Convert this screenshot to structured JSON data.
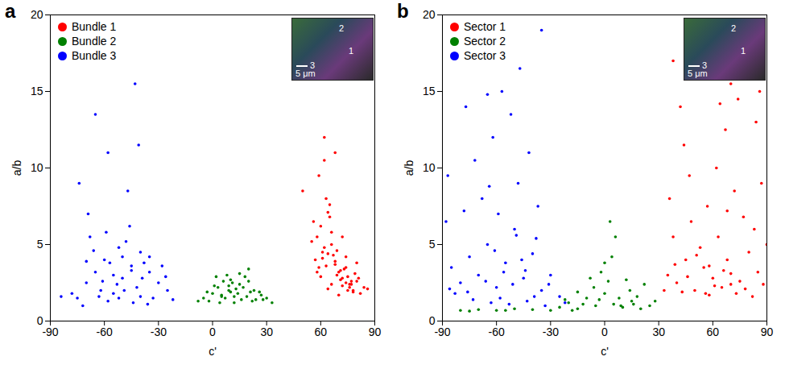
{
  "chart_data": [
    {
      "type": "scatter",
      "title": "a",
      "x_label": "c'",
      "y_label": "a/b",
      "xlim": [
        -90,
        90
      ],
      "xticks": [
        -90,
        -60,
        -30,
        0,
        30,
        60,
        90
      ],
      "ylim": [
        0,
        20
      ],
      "yticks": [
        0,
        5,
        10,
        15,
        20
      ],
      "grid": false,
      "legend": "top-left",
      "inset_labels": [
        "2",
        "1",
        "3"
      ],
      "scale_bar": "5 μm",
      "series": [
        {
          "name": "Bundle 1",
          "color": "#ff0000",
          "x": [
            58,
            60,
            62,
            64,
            66,
            68,
            70,
            72,
            74,
            76,
            78,
            80,
            82,
            59,
            61,
            63,
            65,
            67,
            69,
            71,
            73,
            75,
            77,
            79,
            57,
            60,
            63,
            66,
            69,
            72,
            75,
            78,
            81,
            84,
            56,
            59,
            62,
            65,
            68,
            71,
            74,
            77,
            80,
            55,
            62,
            68,
            74,
            64,
            70,
            76,
            61,
            66,
            72,
            58,
            64,
            86,
            50
          ],
          "values": [
            5.5,
            6.2,
            4.8,
            7.1,
            5.0,
            3.9,
            3.2,
            2.8,
            2.5,
            2.2,
            2.0,
            2.6,
            1.8,
            3.5,
            4.5,
            8.0,
            6.8,
            4.3,
            3.0,
            2.7,
            3.4,
            2.9,
            2.4,
            3.1,
            4.0,
            2.9,
            3.6,
            5.8,
            4.6,
            2.3,
            2.0,
            1.9,
            2.8,
            2.2,
            6.5,
            9.5,
            10.5,
            7.6,
            3.7,
            3.3,
            4.2,
            2.6,
            3.8,
            5.2,
            12.0,
            11.0,
            3.5,
            2.1,
            1.7,
            2.4,
            4.1,
            2.4,
            5.5,
            3.2,
            4.4,
            2.1,
            8.5
          ]
        },
        {
          "name": "Bundle 2",
          "color": "#008000",
          "x": [
            -5,
            0,
            3,
            6,
            9,
            12,
            15,
            18,
            21,
            24,
            27,
            30,
            -2,
            2,
            5,
            8,
            11,
            14,
            17,
            20,
            23,
            26,
            4,
            7,
            10,
            13,
            16,
            19,
            1,
            -8,
            28,
            10,
            12,
            15,
            20,
            33,
            9,
            5,
            22,
            -3
          ],
          "values": [
            1.5,
            1.8,
            2.2,
            2.6,
            2.0,
            1.6,
            2.4,
            2.9,
            1.9,
            1.4,
            1.7,
            1.5,
            1.3,
            2.9,
            1.7,
            3.0,
            2.5,
            1.8,
            2.2,
            3.4,
            2.0,
            1.9,
            1.2,
            1.5,
            1.9,
            2.1,
            1.4,
            1.6,
            2.3,
            1.3,
            1.4,
            2.7,
            1.2,
            3.1,
            2.6,
            1.2,
            2.3,
            1.6,
            1.3,
            1.9
          ]
        },
        {
          "name": "Bundle 3",
          "color": "#0000ff",
          "x": [
            -75,
            -70,
            -65,
            -60,
            -55,
            -50,
            -45,
            -40,
            -35,
            -30,
            -25,
            -22,
            -72,
            -68,
            -62,
            -58,
            -52,
            -48,
            -42,
            -38,
            -33,
            -28,
            -78,
            -66,
            -57,
            -46,
            -44,
            -36,
            -63,
            -53,
            -47,
            -41,
            -69,
            -74,
            -55,
            -49,
            -61,
            -39,
            -59,
            -43,
            -65,
            -50,
            -58,
            -45,
            -35,
            -26,
            -84,
            -52,
            -70,
            -40
          ],
          "values": [
            1.5,
            2.5,
            3.2,
            4.0,
            3.0,
            2.8,
            3.6,
            4.5,
            3.2,
            2.5,
            2.0,
            1.4,
            1.0,
            5.5,
            2.0,
            1.3,
            4.8,
            5.2,
            2.2,
            3.8,
            1.5,
            3.6,
            1.8,
            4.6,
            3.8,
            6.2,
            1.2,
            1.1,
            1.6,
            2.4,
            8.5,
            11.5,
            7.0,
            9.0,
            1.8,
            2.0,
            2.6,
            2.8,
            5.8,
            15.5,
            13.5,
            4.2,
            11.0,
            3.3,
            4.2,
            2.9,
            1.6,
            1.5,
            3.9,
            1.6
          ]
        }
      ]
    },
    {
      "type": "scatter",
      "title": "b",
      "x_label": "c'",
      "y_label": "a/b",
      "xlim": [
        -90,
        90
      ],
      "xticks": [
        -90,
        -60,
        -30,
        0,
        30,
        60,
        90
      ],
      "ylim": [
        0,
        20
      ],
      "yticks": [
        0,
        5,
        10,
        15,
        20
      ],
      "grid": false,
      "legend": "top-left",
      "inset_labels": [
        "2",
        "1",
        "3"
      ],
      "scale_bar": "5 μm",
      "series": [
        {
          "name": "Sector 1",
          "color": "#ff0000",
          "x": [
            35,
            40,
            45,
            50,
            55,
            60,
            65,
            70,
            75,
            80,
            85,
            88,
            38,
            43,
            48,
            53,
            58,
            63,
            68,
            73,
            78,
            83,
            36,
            47,
            57,
            62,
            67,
            72,
            77,
            87,
            42,
            38,
            64,
            74,
            84,
            33,
            46,
            56,
            66,
            82,
            58,
            70,
            90,
            44,
            51,
            70,
            61,
            86,
            39,
            68
          ],
          "values": [
            3.0,
            2.5,
            4.0,
            2.0,
            3.5,
            2.8,
            2.2,
            3.1,
            2.6,
            4.5,
            3.2,
            2.4,
            5.5,
            1.9,
            6.5,
            4.8,
            1.7,
            5.5,
            4.0,
            1.8,
            2.1,
            6.0,
            8.0,
            9.5,
            7.5,
            10.0,
            12.5,
            8.5,
            6.8,
            9.0,
            14.0,
            17.0,
            14.2,
            14.5,
            13.0,
            2.0,
            2.9,
            1.8,
            3.3,
            1.6,
            3.6,
            2.4,
            5.0,
            11.5,
            4.3,
            15.5,
            2.3,
            15.0,
            3.7,
            7.2
          ]
        },
        {
          "name": "Sector 2",
          "color": "#008000",
          "x": [
            -25,
            -20,
            -15,
            -10,
            -5,
            0,
            5,
            10,
            15,
            20,
            25,
            -18,
            -12,
            -6,
            2,
            8,
            14,
            -2,
            4,
            6,
            -80,
            -70,
            -60,
            -50,
            -40,
            -30,
            -75,
            -55,
            18,
            28,
            0,
            -8,
            12,
            -3,
            9,
            3,
            -15,
            16,
            -22,
            22
          ],
          "values": [
            0.9,
            1.2,
            0.8,
            1.5,
            1.0,
            1.8,
            1.1,
            0.9,
            1.3,
            0.8,
            1.0,
            0.7,
            1.1,
            2.2,
            2.6,
            1.5,
            2.0,
            3.2,
            4.2,
            5.5,
            0.7,
            0.75,
            0.7,
            0.8,
            0.75,
            0.7,
            0.65,
            0.7,
            1.6,
            1.3,
            3.8,
            2.8,
            2.7,
            1.4,
            1.0,
            6.5,
            1.9,
            1.1,
            1.4,
            2.4
          ]
        },
        {
          "name": "Sector 3",
          "color": "#0000ff",
          "x": [
            -85,
            -80,
            -75,
            -70,
            -65,
            -60,
            -55,
            -50,
            -45,
            -40,
            -35,
            -30,
            -25,
            -22,
            -88,
            -78,
            -68,
            -58,
            -48,
            -38,
            -83,
            -73,
            -63,
            -53,
            -43,
            -33,
            -72,
            -62,
            -52,
            -42,
            -57,
            -47,
            -65,
            -77,
            -87,
            -37,
            -35,
            -61,
            -51,
            -44,
            -66,
            -56,
            -46,
            -76,
            -86,
            -31,
            -59,
            -49,
            -64,
            -39
          ],
          "values": [
            3.5,
            2.5,
            4.2,
            3.0,
            5.0,
            2.2,
            3.8,
            6.0,
            2.8,
            4.4,
            2.0,
            3.0,
            1.6,
            1.2,
            6.5,
            7.2,
            8.0,
            1.5,
            9.0,
            5.4,
            1.8,
            1.4,
            1.2,
            1.1,
            1.3,
            1.0,
            10.5,
            12.0,
            13.5,
            11.0,
            15.0,
            16.5,
            14.8,
            14.0,
            9.5,
            7.5,
            19.0,
            4.6,
            2.4,
            3.3,
            2.6,
            3.2,
            4.0,
            1.9,
            2.1,
            2.4,
            7.0,
            5.6,
            8.8,
            1.6
          ]
        }
      ]
    }
  ]
}
